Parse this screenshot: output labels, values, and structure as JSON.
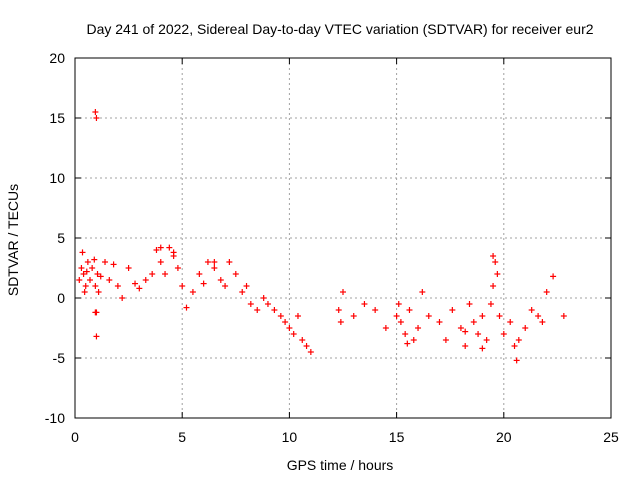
{
  "chart_data": {
    "type": "scatter",
    "title": "Day 241 of 2022, Sidereal Day-to-day VTEC variation (SDTVAR) for receiver eur2",
    "xlabel": "GPS time / hours",
    "ylabel": "SDTVAR / TECUs",
    "xlim": [
      0,
      25
    ],
    "ylim": [
      -10,
      20
    ],
    "xticks": [
      "0",
      "5",
      "10",
      "15",
      "20",
      "25"
    ],
    "yticks": [
      "-10",
      "-5",
      "0",
      "5",
      "10",
      "15",
      "20"
    ],
    "grid": true,
    "marker": "+",
    "color": "#ff0000",
    "series": [
      {
        "name": "SDTVAR",
        "x": [
          0.2,
          0.3,
          0.35,
          0.4,
          0.45,
          0.5,
          0.55,
          0.6,
          0.7,
          0.8,
          0.9,
          0.95,
          1.0,
          1.05,
          1.1,
          1.2,
          1.4,
          1.6,
          1.8,
          2.0,
          2.2,
          2.5,
          2.8,
          3.0,
          3.3,
          3.6,
          3.8,
          4.0,
          4.2,
          4.4,
          4.6,
          4.8,
          5.0,
          5.2,
          5.5,
          5.8,
          6.0,
          6.2,
          6.5,
          6.8,
          7.0,
          7.2,
          7.5,
          7.8,
          8.0,
          8.2,
          8.5,
          8.8,
          9.0,
          9.3,
          9.6,
          9.8,
          10.0,
          10.2,
          10.4,
          10.6,
          10.8,
          11.0,
          12.3,
          12.4,
          12.5,
          13.0,
          13.5,
          14.0,
          14.5,
          15.0,
          15.1,
          15.2,
          15.4,
          15.6,
          15.8,
          16.0,
          16.2,
          16.5,
          17.0,
          17.3,
          17.6,
          18.0,
          18.2,
          18.4,
          18.6,
          18.8,
          19.0,
          19.2,
          19.4,
          19.5,
          19.6,
          19.7,
          19.8,
          20.0,
          20.3,
          20.5,
          20.7,
          21.0,
          21.3,
          21.6,
          21.8,
          22.0,
          22.3,
          22.8,
          0.95,
          1.0,
          1.0,
          0.95,
          4.6,
          4.0,
          6.5,
          19.5,
          20.6,
          19.0,
          15.5,
          18.2
        ],
        "y": [
          1.5,
          2.5,
          3.8,
          2.0,
          0.5,
          1.0,
          2.2,
          3.0,
          1.5,
          2.5,
          3.2,
          1.0,
          -1.2,
          2.0,
          0.5,
          1.8,
          3.0,
          1.5,
          2.8,
          1.0,
          0.0,
          2.5,
          1.2,
          0.8,
          1.5,
          2.0,
          4.0,
          3.0,
          2.0,
          4.2,
          3.5,
          2.5,
          1.0,
          -0.8,
          0.5,
          2.0,
          1.2,
          3.0,
          2.5,
          1.5,
          1.0,
          3.0,
          2.0,
          0.5,
          1.0,
          -0.5,
          -1.0,
          0.0,
          -0.5,
          -1.0,
          -1.5,
          -2.0,
          -2.5,
          -3.0,
          -1.5,
          -3.5,
          -4.0,
          -4.5,
          -1.0,
          -2.0,
          0.5,
          -1.5,
          -0.5,
          -1.0,
          -2.5,
          -1.5,
          -0.5,
          -2.0,
          -3.0,
          -1.0,
          -3.5,
          -2.5,
          0.5,
          -1.5,
          -2.0,
          -3.5,
          -1.0,
          -2.5,
          -4.0,
          -0.5,
          -2.0,
          -3.0,
          -1.5,
          -3.5,
          -0.5,
          1.0,
          3.0,
          2.0,
          -1.5,
          -3.0,
          -2.0,
          -4.0,
          -3.5,
          -2.5,
          -1.0,
          -1.5,
          -2.0,
          0.5,
          1.8,
          -1.5,
          15.5,
          15.0,
          -3.2,
          -1.2,
          3.8,
          4.2,
          3.0,
          3.5,
          -5.2,
          -4.2,
          -3.8,
          -2.8
        ]
      }
    ]
  }
}
